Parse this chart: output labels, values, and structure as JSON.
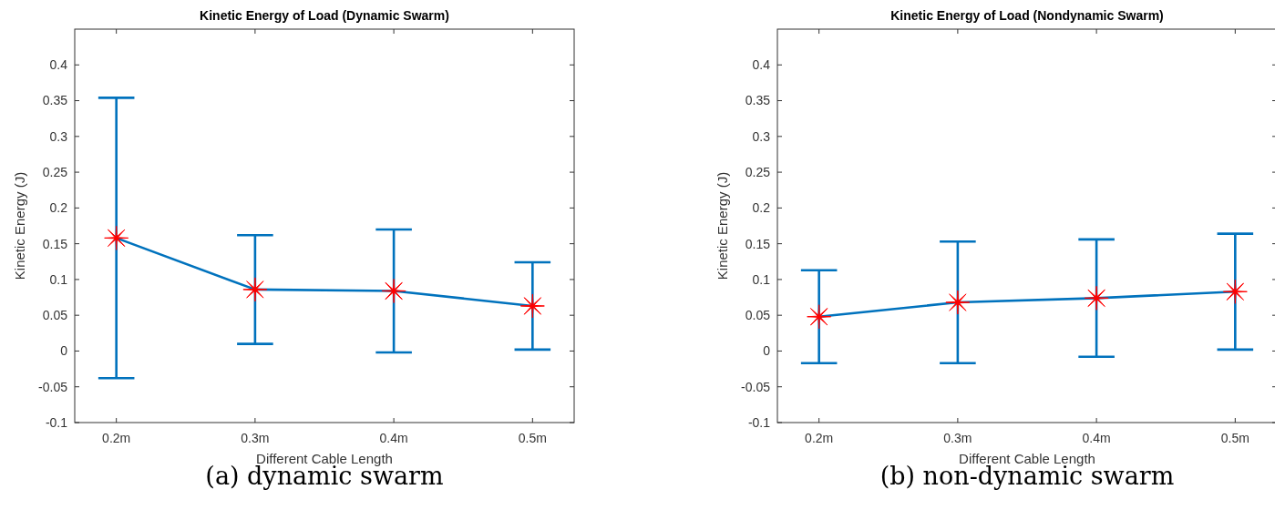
{
  "chart_data": [
    {
      "type": "line",
      "title": "Kinetic Energy of Load (Dynamic Swarm)",
      "xlabel": "Different Cable Length",
      "ylabel": "Kinetic Energy (J)",
      "categories": [
        "0.2m",
        "0.3m",
        "0.4m",
        "0.5m"
      ],
      "ylim": [
        -0.1,
        0.45
      ],
      "yticks": [
        -0.1,
        -0.05,
        0,
        0.05,
        0.1,
        0.15,
        0.2,
        0.25,
        0.3,
        0.35,
        0.4
      ],
      "grid": false,
      "annotations": [
        "(a) dynamic swarm"
      ],
      "series": [
        {
          "color": "#0072bd",
          "colors": [
            "#ff0000",
            "#ff0000",
            "#ff0000",
            "#ff0000"
          ],
          "marker": "cross",
          "values": [
            0.158,
            0.086,
            0.084,
            0.063
          ],
          "errors": [
            0.196,
            0.076,
            0.086,
            0.061
          ]
        }
      ]
    },
    {
      "type": "line",
      "title": "Kinetic Energy of Load (Nondynamic Swarm)",
      "xlabel": "Different Cable Length",
      "ylabel": "Kinetic Energy (J)",
      "categories": [
        "0.2m",
        "0.3m",
        "0.4m",
        "0.5m"
      ],
      "ylim": [
        -0.1,
        0.45
      ],
      "yticks": [
        -0.1,
        -0.05,
        0,
        0.05,
        0.1,
        0.15,
        0.2,
        0.25,
        0.3,
        0.35,
        0.4
      ],
      "grid": false,
      "annotations": [
        "(b) non-dynamic swarm"
      ],
      "series": [
        {
          "color": "#0072bd",
          "colors": [
            "#ff0000",
            "#ff0000",
            "#ff0000",
            "#ff0000"
          ],
          "marker": "cross",
          "values": [
            0.048,
            0.068,
            0.074,
            0.083
          ],
          "errors": [
            0.065,
            0.085,
            0.082,
            0.081
          ]
        }
      ]
    }
  ]
}
